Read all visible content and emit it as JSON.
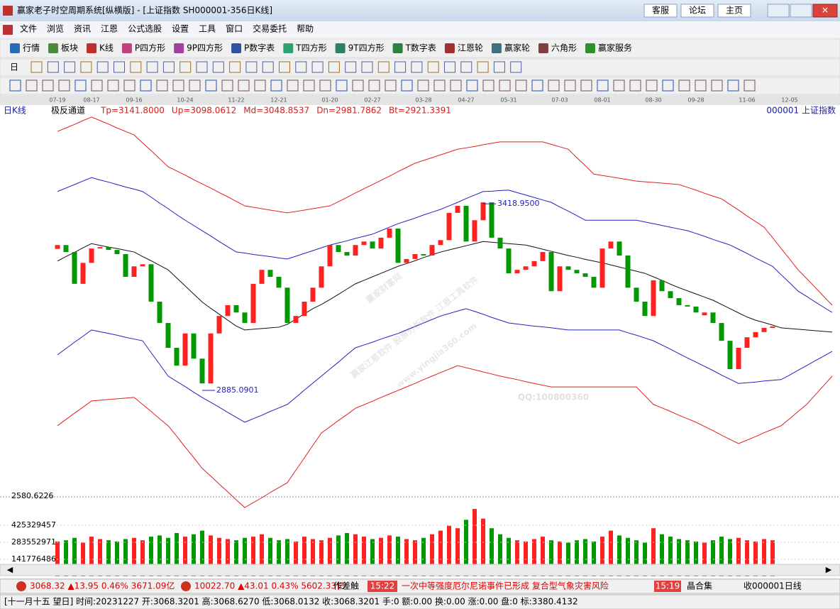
{
  "window": {
    "title": "赢家老子时空周期系统[纵横版] - [上证指数  SH000001-356日K线]",
    "buttons": [
      "客服",
      "论坛",
      "主页"
    ]
  },
  "menu": [
    "文件",
    "浏览",
    "资讯",
    "江恩",
    "公式选股",
    "设置",
    "工具",
    "窗口",
    "交易委托",
    "帮助"
  ],
  "toolbar": [
    "行情",
    "板块",
    "K线",
    "P四方形",
    "9P四方形",
    "P数字表",
    "T四方形",
    "9T四方形",
    "T数字表",
    "江恩轮",
    "赢家轮",
    "六角形",
    "赢家服务"
  ],
  "period_selector": "日",
  "watermark": [
    "赢家财富网",
    "赢家江恩软件  股票分析软件  江恩工具软件",
    "www.yingjia360.com",
    "QQ:100800360"
  ],
  "chart_data": [
    {
      "type": "candlestick",
      "title": "日K线",
      "indicator_name": "极反通道",
      "indicator_values": [
        "Tp=3141.8000",
        "Up=3098.0612",
        "Md=3048.8537",
        "Dn=2981.7862",
        "Bt=2921.3391"
      ],
      "symbol_label": "000001  上证指数",
      "up_color": "#ff2020",
      "down_color": "#009900",
      "categories": [
        "07-19",
        null,
        null,
        null,
        "08-17",
        null,
        null,
        null,
        null,
        "09-16",
        null,
        null,
        null,
        null,
        null,
        "10-24",
        null,
        null,
        null,
        null,
        null,
        "11-22",
        null,
        null,
        null,
        null,
        "12-21",
        null,
        null,
        null,
        null,
        null,
        "01-20",
        null,
        null,
        null,
        null,
        "02-27",
        null,
        null,
        null,
        null,
        null,
        "03-28",
        null,
        null,
        null,
        null,
        "04-27",
        null,
        null,
        null,
        null,
        "05-31",
        null,
        null,
        null,
        null,
        null,
        "07-03",
        null,
        null,
        null,
        null,
        "08-01",
        null,
        null,
        null,
        null,
        null,
        "08-30",
        null,
        null,
        null,
        null,
        "09-28",
        null,
        null,
        null,
        null,
        null,
        "11-06",
        null,
        null,
        null,
        null,
        "12-05",
        null,
        null,
        null,
        null,
        null
      ],
      "candles": [
        [
          3290,
          3301
        ],
        [
          3301,
          3281
        ],
        [
          3281,
          3190
        ],
        [
          3190,
          3250
        ],
        [
          3250,
          3291
        ],
        [
          3291,
          3295
        ],
        [
          3295,
          3287
        ],
        [
          3287,
          3275
        ],
        [
          3275,
          3210
        ],
        [
          3210,
          3240
        ],
        [
          3240,
          3246
        ],
        [
          3246,
          3139
        ],
        [
          3139,
          3078
        ],
        [
          3078,
          3007
        ],
        [
          3007,
          2956
        ],
        [
          2956,
          3048
        ],
        [
          3048,
          2976
        ],
        [
          2976,
          2905
        ],
        [
          2905,
          3048
        ],
        [
          3048,
          3098
        ],
        [
          3098,
          3129
        ],
        [
          3129,
          3108
        ],
        [
          3108,
          3078
        ],
        [
          3078,
          3190
        ],
        [
          3190,
          3230
        ],
        [
          3230,
          3210
        ],
        [
          3210,
          3179
        ],
        [
          3179,
          3078
        ],
        [
          3078,
          3098
        ],
        [
          3098,
          3139
        ],
        [
          3139,
          3179
        ],
        [
          3179,
          3240
        ],
        [
          3240,
          3301
        ],
        [
          3301,
          3281
        ],
        [
          3281,
          3271
        ],
        [
          3271,
          3301
        ],
        [
          3301,
          3311
        ],
        [
          3311,
          3291
        ],
        [
          3291,
          3322
        ],
        [
          3322,
          3348
        ],
        [
          3348,
          3250
        ],
        [
          3250,
          3261
        ],
        [
          3261,
          3275
        ],
        [
          3275,
          3271
        ],
        [
          3271,
          3301
        ],
        [
          3301,
          3315
        ],
        [
          3315,
          3393
        ],
        [
          3393,
          3413
        ],
        [
          3413,
          3311
        ],
        [
          3311,
          3372
        ],
        [
          3372,
          3423
        ],
        [
          3423,
          3322
        ],
        [
          3322,
          3291
        ],
        [
          3291,
          3220
        ],
        [
          3220,
          3230
        ],
        [
          3230,
          3240
        ],
        [
          3240,
          3255
        ],
        [
          3255,
          3281
        ],
        [
          3281,
          3169
        ],
        [
          3169,
          3240
        ],
        [
          3240,
          3230
        ],
        [
          3230,
          3220
        ],
        [
          3220,
          3210
        ],
        [
          3210,
          3179
        ],
        [
          3179,
          3291
        ],
        [
          3291,
          3311
        ],
        [
          3311,
          3271
        ],
        [
          3271,
          3179
        ],
        [
          3179,
          3139
        ],
        [
          3139,
          3098
        ],
        [
          3098,
          3200
        ],
        [
          3200,
          3169
        ],
        [
          3169,
          3149
        ],
        [
          3149,
          3129
        ],
        [
          3129,
          3125
        ],
        [
          3125,
          3108
        ],
        [
          3100,
          3108
        ],
        [
          3108,
          3078
        ],
        [
          3078,
          3027
        ],
        [
          3027,
          2946
        ],
        [
          2946,
          3007
        ],
        [
          3007,
          3037
        ],
        [
          3037,
          3052
        ],
        [
          3052,
          3064
        ],
        [
          3064,
          3068
        ],
        null,
        null,
        null,
        null,
        null,
        null,
        null
      ],
      "bands": [
        {
          "color": "#e02020",
          "values": [
            3626,
            3636,
            3646,
            3657,
            3667,
            3657,
            3647,
            3636,
            3626,
            3616,
            3593,
            3571,
            3548,
            3525,
            3513,
            3501,
            3488,
            3476,
            3464,
            3451,
            3439,
            3426,
            3413,
            3409,
            3405,
            3401,
            3397,
            3393,
            3397,
            3401,
            3405,
            3409,
            3413,
            3425,
            3437,
            3450,
            3462,
            3474,
            3486,
            3498,
            3511,
            3523,
            3535,
            3543,
            3551,
            3559,
            3567,
            3575,
            3579,
            3583,
            3588,
            3592,
            3596,
            3596,
            3596,
            3596,
            3596,
            3596,
            3589,
            3582,
            3575,
            3551,
            3528,
            3504,
            3500,
            3496,
            3492,
            3488,
            3484,
            3482,
            3480,
            3478,
            3476,
            3474,
            3466,
            3458,
            3449,
            3441,
            3433,
            3417,
            3401,
            3384,
            3368,
            3352,
            3322,
            3291,
            3261,
            3230,
            3205,
            3180,
            3154,
            3129
          ]
        },
        {
          "color": "#2020c0",
          "values": [
            3454,
            3464,
            3474,
            3484,
            3494,
            3487,
            3481,
            3474,
            3467,
            3461,
            3454,
            3438,
            3421,
            3405,
            3388,
            3372,
            3357,
            3342,
            3327,
            3311,
            3296,
            3281,
            3278,
            3274,
            3271,
            3268,
            3264,
            3261,
            3269,
            3277,
            3285,
            3293,
            3301,
            3307,
            3313,
            3320,
            3326,
            3332,
            3342,
            3352,
            3362,
            3370,
            3378,
            3387,
            3395,
            3403,
            3413,
            3423,
            3434,
            3444,
            3454,
            3455,
            3457,
            3458,
            3451,
            3444,
            3437,
            3430,
            3423,
            3410,
            3398,
            3385,
            3372,
            3372,
            3372,
            3372,
            3372,
            3372,
            3372,
            3367,
            3362,
            3357,
            3352,
            3347,
            3342,
            3334,
            3326,
            3317,
            3309,
            3301,
            3289,
            3277,
            3264,
            3252,
            3240,
            3216,
            3193,
            3169,
            3154,
            3138,
            3123,
            3108
          ]
        },
        {
          "color": "#101010",
          "values": [
            3255,
            3268,
            3280,
            3293,
            3305,
            3300,
            3295,
            3291,
            3286,
            3281,
            3268,
            3256,
            3243,
            3230,
            3207,
            3184,
            3161,
            3138,
            3120,
            3103,
            3086,
            3069,
            3058,
            3060,
            3062,
            3064,
            3066,
            3074,
            3089,
            3104,
            3119,
            3131,
            3145,
            3160,
            3175,
            3190,
            3200,
            3210,
            3220,
            3230,
            3240,
            3248,
            3256,
            3265,
            3273,
            3281,
            3287,
            3293,
            3299,
            3305,
            3311,
            3309,
            3307,
            3305,
            3303,
            3301,
            3295,
            3289,
            3283,
            3277,
            3271,
            3266,
            3260,
            3255,
            3250,
            3244,
            3238,
            3232,
            3226,
            3220,
            3210,
            3200,
            3189,
            3179,
            3170,
            3161,
            3152,
            3143,
            3131,
            3119,
            3107,
            3095,
            3086,
            3079,
            3072,
            3064,
            3062,
            3060,
            3058,
            3056,
            3054,
            3052
          ]
        },
        {
          "color": "#2020c0",
          "values": [
            2987,
            3005,
            3023,
            3040,
            3058,
            3053,
            3048,
            3043,
            3037,
            3032,
            3027,
            2993,
            2960,
            2926,
            2911,
            2896,
            2880,
            2865,
            2851,
            2837,
            2822,
            2808,
            2794,
            2804,
            2814,
            2825,
            2835,
            2845,
            2865,
            2886,
            2906,
            2926,
            2946,
            2966,
            2987,
            3007,
            3015,
            3023,
            3032,
            3040,
            3048,
            3058,
            3068,
            3078,
            3088,
            3098,
            3105,
            3112,
            3119,
            3111,
            3103,
            3094,
            3086,
            3078,
            3075,
            3072,
            3069,
            3067,
            3064,
            3061,
            3058,
            3058,
            3058,
            3058,
            3058,
            3058,
            3058,
            3050,
            3043,
            3035,
            3027,
            3015,
            3003,
            2990,
            2978,
            2966,
            2954,
            2942,
            2929,
            2917,
            2905,
            2907,
            2909,
            2912,
            2914,
            2916,
            2929,
            2943,
            2956,
            2970,
            2983,
            2997
          ]
        },
        {
          "color": "#e02020",
          "values": [
            2784,
            2802,
            2820,
            2837,
            2855,
            2857,
            2859,
            2861,
            2863,
            2865,
            2845,
            2825,
            2804,
            2784,
            2754,
            2723,
            2693,
            2662,
            2640,
            2617,
            2595,
            2572,
            2550,
            2564,
            2578,
            2593,
            2607,
            2621,
            2657,
            2692,
            2728,
            2763,
            2781,
            2799,
            2816,
            2834,
            2844,
            2854,
            2865,
            2875,
            2885,
            2895,
            2905,
            2916,
            2926,
            2936,
            2946,
            2956,
            2950,
            2944,
            2938,
            2932,
            2926,
            2921,
            2916,
            2910,
            2905,
            2900,
            2895,
            2895,
            2895,
            2895,
            2895,
            2895,
            2895,
            2895,
            2895,
            2895,
            2895,
            2870,
            2845,
            2835,
            2825,
            2814,
            2804,
            2794,
            2782,
            2770,
            2757,
            2745,
            2733,
            2743,
            2753,
            2764,
            2774,
            2784,
            2804,
            2825,
            2845,
            2872,
            2899,
            2926
          ]
        }
      ],
      "annotations": [
        {
          "value": 3418.95,
          "label": "3418.9500"
        },
        {
          "value": 2885.0901,
          "label": "2885.0901"
        }
      ],
      "ylim": [
        2544,
        3671
      ],
      "yticks": [
        2580.6226
      ]
    },
    {
      "type": "bar",
      "values": [
        290000000,
        300000000,
        320000000,
        280000000,
        330000000,
        310000000,
        300000000,
        290000000,
        310000000,
        320000000,
        300000000,
        330000000,
        340000000,
        320000000,
        360000000,
        330000000,
        350000000,
        380000000,
        340000000,
        320000000,
        310000000,
        300000000,
        320000000,
        330000000,
        350000000,
        320000000,
        300000000,
        310000000,
        290000000,
        330000000,
        310000000,
        300000000,
        320000000,
        340000000,
        360000000,
        350000000,
        330000000,
        310000000,
        320000000,
        340000000,
        330000000,
        310000000,
        300000000,
        320000000,
        350000000,
        380000000,
        420000000,
        400000000,
        470000000,
        560000000,
        480000000,
        400000000,
        350000000,
        320000000,
        300000000,
        290000000,
        310000000,
        330000000,
        300000000,
        290000000,
        280000000,
        300000000,
        310000000,
        290000000,
        330000000,
        380000000,
        340000000,
        320000000,
        300000000,
        280000000,
        400000000,
        350000000,
        330000000,
        310000000,
        300000000,
        290000000,
        280000000,
        300000000,
        330000000,
        310000000,
        320000000,
        300000000,
        290000000,
        310000000,
        300000000,
        null,
        null,
        null,
        null,
        null,
        null,
        null
      ],
      "ylim": [
        0,
        590000000
      ],
      "yticks": [
        141776486,
        283552971,
        425329457
      ]
    }
  ],
  "status_bar": {
    "quote1": "3068.32 ▲13.95 0.46% 3671.09亿",
    "quote2": "10022.70 ▲43.01 0.43% 5602.33亿",
    "item": "作差触",
    "time1": "15:22",
    "news": "一次中等强度厄尔尼诺事件已形成 复合型气象灾害风险",
    "time2": "15:19",
    "stock": "晶合集",
    "period": "收000001日线"
  },
  "info_line": "[十一月十五  望日] 时间:20231227 开:3068.3201 高:3068.6270 低:3068.0132 收:3068.3201 手:0 额:0.00 换:0.00 涨:0.00 盘:0 标:3380.4132"
}
